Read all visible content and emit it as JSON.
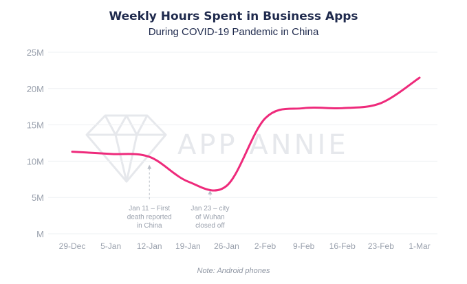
{
  "chart_data": {
    "type": "line",
    "title": "Weekly Hours Spent in Business Apps",
    "subtitle": "During COVID-19 Pandemic in China",
    "note": "Note: Android phones",
    "watermark": "APP ANNIE",
    "xlabel": "",
    "ylabel": "",
    "categories": [
      "29-Dec",
      "5-Jan",
      "12-Jan",
      "19-Jan",
      "26-Jan",
      "2-Feb",
      "9-Feb",
      "16-Feb",
      "23-Feb",
      "1-Mar"
    ],
    "y_ticks": [
      {
        "value": 0,
        "label": "M"
      },
      {
        "value": 5,
        "label": "5M"
      },
      {
        "value": 10,
        "label": "10M"
      },
      {
        "value": 15,
        "label": "15M"
      },
      {
        "value": 20,
        "label": "20M"
      },
      {
        "value": 25,
        "label": "25M"
      }
    ],
    "ylim": [
      0,
      25
    ],
    "grid": true,
    "line_color": "#ee2a7b",
    "series": [
      {
        "values": [
          {
            "x": "29-Dec",
            "y": 11.3
          },
          {
            "x": "5-Jan",
            "y": 11.0
          },
          {
            "x": "12-Jan",
            "y": 10.6
          },
          {
            "x": "19-Jan",
            "y": 7.2
          },
          {
            "x": "26-Jan",
            "y": 6.6
          },
          {
            "x": "2-Feb",
            "y": 15.9
          },
          {
            "x": "9-Feb",
            "y": 17.3
          },
          {
            "x": "16-Feb",
            "y": 17.3
          },
          {
            "x": "23-Feb",
            "y": 18.0
          },
          {
            "x": "1-Mar",
            "y": 21.5
          }
        ]
      }
    ],
    "annotations": [
      {
        "x": "12-Jan",
        "y": 9.6,
        "lines": [
          "Jan 11 – First",
          "death reported",
          "in China"
        ]
      },
      {
        "x": "23-Jan",
        "y": 6.1,
        "lines": [
          "Jan 23 – city",
          "of Wuhan",
          "closed off"
        ]
      }
    ]
  }
}
